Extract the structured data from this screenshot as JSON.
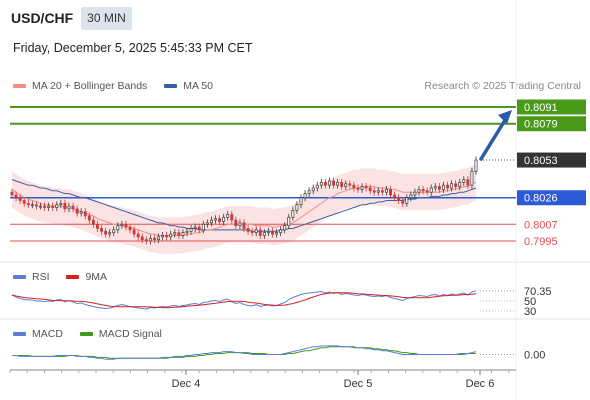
{
  "header": {
    "symbol": "USD/CHF",
    "timeframe": "30 MIN",
    "datetime": "Friday, December 5, 2025 5:45:33 PM CET"
  },
  "legend": {
    "main": [
      {
        "label": "MA 20 + Bollinger Bands",
        "color": "#f28b8b"
      },
      {
        "label": "MA 50",
        "color": "#3a5f9f"
      }
    ],
    "rsi": [
      {
        "label": "RSI",
        "color": "#5b7fd6"
      },
      {
        "label": "9MA",
        "color": "#d62020"
      }
    ],
    "macd": [
      {
        "label": "MACD",
        "color": "#5b7fd6"
      },
      {
        "label": "MACD Signal",
        "color": "#3d9a1a"
      }
    ]
  },
  "credit": "Research © 2025 Trading Central",
  "colors": {
    "green_level": "#4a9a1a",
    "blue_level": "#2d5bd6",
    "red_level": "#e05050",
    "last_price": "#333333",
    "candle_up": "#3a3a3a",
    "candle_down": "#c93a3a",
    "bollinger_fill": "#fbdada",
    "arrow": "#2d5aa8"
  },
  "chart_data": {
    "type": "candlestick",
    "symbol": "USD/CHF",
    "timeframe": "30 MIN",
    "x_ticks": [
      "Dec 4",
      "Dec 5",
      "Dec 6"
    ],
    "ylim": [
      0.7985,
      0.8096
    ],
    "price_levels": [
      {
        "value": "0.8091",
        "kind": "resistance",
        "color": "green"
      },
      {
        "value": "0.8079",
        "kind": "resistance",
        "color": "green"
      },
      {
        "value": "0.8053",
        "kind": "last",
        "color": "dark"
      },
      {
        "value": "0.8026",
        "kind": "pivot",
        "color": "blue"
      },
      {
        "value": "0.8007",
        "kind": "support",
        "color": "red"
      },
      {
        "value": "0.7995",
        "kind": "support",
        "color": "red"
      }
    ],
    "closes": [
      0.8028,
      0.8026,
      0.8024,
      0.8022,
      0.8021,
      0.8021,
      0.802,
      0.802,
      0.8019,
      0.802,
      0.8019,
      0.8021,
      0.8022,
      0.8018,
      0.802,
      0.8018,
      0.8015,
      0.8016,
      0.8013,
      0.801,
      0.8007,
      0.8004,
      0.8002,
      0.8,
      0.8001,
      0.8003,
      0.8006,
      0.8007,
      0.8005,
      0.8003,
      0.8,
      0.7998,
      0.7996,
      0.7995,
      0.7997,
      0.7996,
      0.7998,
      0.7999,
      0.7998,
      0.8,
      0.8001,
      0.7999,
      0.8001,
      0.8002,
      0.8004,
      0.8005,
      0.8003,
      0.8007,
      0.8008,
      0.801,
      0.8011,
      0.8009,
      0.8012,
      0.8014,
      0.801,
      0.8006,
      0.8008,
      0.8004,
      0.8002,
      0.8001,
      0.8003,
      0.7999,
      0.8001,
      0.8002,
      0.8,
      0.8001,
      0.8003,
      0.8006,
      0.8012,
      0.8017,
      0.8021,
      0.8026,
      0.8029,
      0.8031,
      0.8033,
      0.8035,
      0.8037,
      0.8035,
      0.8038,
      0.8035,
      0.8037,
      0.8034,
      0.8036,
      0.8035,
      0.8033,
      0.8032,
      0.8034,
      0.8033,
      0.8031,
      0.803,
      0.8031,
      0.803,
      0.8032,
      0.8028,
      0.8026,
      0.8024,
      0.8022,
      0.8026,
      0.8028,
      0.803,
      0.8032,
      0.8031,
      0.803,
      0.8033,
      0.8034,
      0.8032,
      0.8035,
      0.8033,
      0.8036,
      0.8034,
      0.8037,
      0.8039,
      0.8035,
      0.8045,
      0.8053
    ],
    "ma20": [
      0.8032,
      0.803,
      0.8028,
      0.8026,
      0.8025,
      0.8024,
      0.8023,
      0.8022,
      0.8021,
      0.8021,
      0.802,
      0.802,
      0.802,
      0.8019,
      0.8019,
      0.8018,
      0.8017,
      0.8016,
      0.8015,
      0.8014,
      0.8013,
      0.8011,
      0.801,
      0.8009,
      0.8008,
      0.8007,
      0.8007,
      0.8006,
      0.8005,
      0.8005,
      0.8004,
      0.8003,
      0.8002,
      0.8001,
      0.8,
      0.8,
      0.7999,
      0.7999,
      0.7999,
      0.7999,
      0.7999,
      0.7999,
      0.7999,
      0.8,
      0.8,
      0.8001,
      0.8001,
      0.8002,
      0.8003,
      0.8003,
      0.8004,
      0.8005,
      0.8006,
      0.8007,
      0.8007,
      0.8007,
      0.8007,
      0.8007,
      0.8007,
      0.8007,
      0.8006,
      0.8006,
      0.8006,
      0.8006,
      0.8005,
      0.8005,
      0.8006,
      0.8006,
      0.8007,
      0.8008,
      0.801,
      0.8012,
      0.8014,
      0.8016,
      0.8018,
      0.802,
      0.8022,
      0.8024,
      0.8026,
      0.8027,
      0.8029,
      0.803,
      0.8031,
      0.8032,
      0.8033,
      0.8033,
      0.8034,
      0.8034,
      0.8034,
      0.8034,
      0.8033,
      0.8033,
      0.8033,
      0.8032,
      0.8032,
      0.8031,
      0.803,
      0.803,
      0.803,
      0.803,
      0.803,
      0.803,
      0.803,
      0.803,
      0.803,
      0.803,
      0.8031,
      0.8031,
      0.8032,
      0.8032,
      0.8033,
      0.8034,
      0.8034,
      0.8036,
      0.8037
    ],
    "ma50": [
      0.8039,
      0.8038,
      0.8037,
      0.8036,
      0.8035,
      0.8035,
      0.8034,
      0.8033,
      0.8033,
      0.8032,
      0.8031,
      0.8031,
      0.803,
      0.8029,
      0.8029,
      0.8028,
      0.8027,
      0.8026,
      0.8026,
      0.8025,
      0.8024,
      0.8023,
      0.8022,
      0.8021,
      0.802,
      0.8019,
      0.8018,
      0.8017,
      0.8016,
      0.8015,
      0.8014,
      0.8013,
      0.8012,
      0.8011,
      0.801,
      0.8009,
      0.8008,
      0.8008,
      0.8007,
      0.8006,
      0.8006,
      0.8005,
      0.8005,
      0.8004,
      0.8004,
      0.8004,
      0.8003,
      0.8003,
      0.8003,
      0.8003,
      0.8003,
      0.8003,
      0.8003,
      0.8003,
      0.8003,
      0.8003,
      0.8003,
      0.8003,
      0.8003,
      0.8002,
      0.8002,
      0.8002,
      0.8002,
      0.8002,
      0.8002,
      0.8002,
      0.8003,
      0.8003,
      0.8004,
      0.8004,
      0.8005,
      0.8006,
      0.8007,
      0.8008,
      0.8009,
      0.801,
      0.8011,
      0.8012,
      0.8013,
      0.8014,
      0.8015,
      0.8016,
      0.8017,
      0.8018,
      0.8019,
      0.802,
      0.8021,
      0.8021,
      0.8022,
      0.8022,
      0.8023,
      0.8023,
      0.8024,
      0.8024,
      0.8024,
      0.8024,
      0.8024,
      0.8025,
      0.8025,
      0.8025,
      0.8026,
      0.8026,
      0.8026,
      0.8027,
      0.8027,
      0.8027,
      0.8028,
      0.8028,
      0.8029,
      0.8029,
      0.803,
      0.803,
      0.8031,
      0.8032,
      0.8033
    ],
    "bb_width": 0.0013,
    "rsi": {
      "label": "RSI",
      "value": "70.35",
      "levels": [
        "50",
        "30"
      ],
      "ylim": [
        20,
        80
      ],
      "values": [
        62,
        58,
        55,
        53,
        52,
        52,
        50,
        50,
        49,
        50,
        49,
        52,
        53,
        48,
        51,
        48,
        45,
        46,
        43,
        41,
        39,
        37,
        36,
        35,
        36,
        38,
        41,
        43,
        41,
        39,
        37,
        36,
        35,
        34,
        37,
        36,
        38,
        39,
        38,
        40,
        41,
        39,
        41,
        42,
        44,
        45,
        43,
        47,
        48,
        50,
        51,
        49,
        52,
        54,
        49,
        45,
        47,
        43,
        41,
        40,
        43,
        39,
        41,
        42,
        40,
        41,
        44,
        47,
        53,
        57,
        60,
        63,
        65,
        66,
        67,
        68,
        69,
        66,
        68,
        65,
        67,
        63,
        65,
        64,
        62,
        61,
        63,
        62,
        60,
        59,
        60,
        59,
        61,
        57,
        55,
        53,
        51,
        55,
        57,
        59,
        61,
        60,
        59,
        62,
        63,
        60,
        63,
        61,
        64,
        62,
        64,
        66,
        62,
        68,
        70.35
      ]
    },
    "macd": {
      "label": "MACD",
      "value": "0.00",
      "ylim": [
        -0.0012,
        0.0012
      ],
      "macd": [
        -0.0001,
        -0.0001,
        -0.0002,
        -0.0002,
        -0.0002,
        -0.0002,
        -0.0002,
        -0.0002,
        -0.0002,
        -0.0002,
        -0.0002,
        -0.0001,
        -0.0001,
        -0.0001,
        -0.0001,
        -0.0001,
        -0.0002,
        -0.0002,
        -0.0002,
        -0.0003,
        -0.0003,
        -0.0004,
        -0.0004,
        -0.0005,
        -0.0005,
        -0.0005,
        -0.0004,
        -0.0004,
        -0.0004,
        -0.0004,
        -0.0004,
        -0.0004,
        -0.0004,
        -0.0004,
        -0.0004,
        -0.0004,
        -0.0004,
        -0.0003,
        -0.0003,
        -0.0003,
        -0.0002,
        -0.0002,
        -0.0002,
        -0.0001,
        -0.0001,
        0.0,
        0.0,
        0.0001,
        0.0001,
        0.0002,
        0.0002,
        0.0002,
        0.0003,
        0.0003,
        0.0003,
        0.0002,
        0.0002,
        0.0001,
        0.0001,
        0.0,
        0.0,
        0.0,
        0.0,
        0.0,
        0.0,
        0.0,
        0.0,
        0.0001,
        0.0002,
        0.0003,
        0.0004,
        0.0005,
        0.0006,
        0.0007,
        0.0008,
        0.0008,
        0.0009,
        0.0009,
        0.0009,
        0.0009,
        0.0009,
        0.0008,
        0.0008,
        0.0008,
        0.0007,
        0.0007,
        0.0007,
        0.0006,
        0.0006,
        0.0005,
        0.0005,
        0.0004,
        0.0004,
        0.0003,
        0.0002,
        0.0001,
        0.0,
        0.0,
        0.0,
        0.0,
        0.0,
        0.0,
        0.0,
        0.0,
        0.0,
        0.0,
        0.0,
        0.0,
        0.0,
        0.0,
        0.0001,
        0.0001,
        0.0001,
        0.0002,
        0.0003
      ],
      "signal": [
        -0.0001,
        -0.0001,
        -0.0001,
        -0.0001,
        -0.0001,
        -0.0002,
        -0.0002,
        -0.0002,
        -0.0002,
        -0.0002,
        -0.0002,
        -0.0002,
        -0.0002,
        -0.0002,
        -0.0001,
        -0.0001,
        -0.0001,
        -0.0002,
        -0.0002,
        -0.0002,
        -0.0002,
        -0.0003,
        -0.0003,
        -0.0003,
        -0.0004,
        -0.0004,
        -0.0004,
        -0.0004,
        -0.0004,
        -0.0004,
        -0.0004,
        -0.0004,
        -0.0004,
        -0.0004,
        -0.0004,
        -0.0004,
        -0.0004,
        -0.0004,
        -0.0004,
        -0.0003,
        -0.0003,
        -0.0003,
        -0.0003,
        -0.0002,
        -0.0002,
        -0.0002,
        -0.0001,
        -0.0001,
        0.0,
        0.0,
        0.0001,
        0.0001,
        0.0001,
        0.0002,
        0.0002,
        0.0002,
        0.0002,
        0.0002,
        0.0002,
        0.0001,
        0.0001,
        0.0001,
        0.0001,
        0.0,
        0.0,
        0.0,
        0.0,
        0.0,
        0.0001,
        0.0001,
        0.0002,
        0.0003,
        0.0004,
        0.0004,
        0.0005,
        0.0006,
        0.0007,
        0.0007,
        0.0008,
        0.0008,
        0.0008,
        0.0008,
        0.0008,
        0.0008,
        0.0008,
        0.0007,
        0.0007,
        0.0007,
        0.0007,
        0.0006,
        0.0006,
        0.0005,
        0.0005,
        0.0004,
        0.0004,
        0.0003,
        0.0002,
        0.0002,
        0.0001,
        0.0001,
        0.0,
        0.0,
        0.0,
        0.0,
        0.0,
        0.0,
        0.0,
        0.0,
        0.0,
        0.0,
        0.0,
        0.0,
        0.0001,
        0.0001,
        0.0001
      ]
    }
  }
}
